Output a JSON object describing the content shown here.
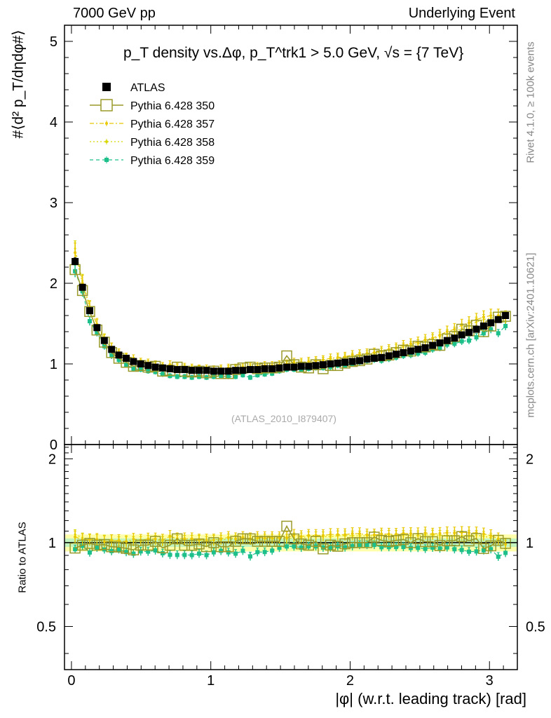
{
  "header": {
    "left": "7000 GeV pp",
    "right": "Underlying Event"
  },
  "side": {
    "rivet": "Rivet 4.1.0, ≥ 100k events",
    "mcplots": "mcplots.cern.ch [arXiv:2401.10621]"
  },
  "chart_data": {
    "type": "scatter",
    "title": "p_T density vs.Δφ, p_T^trk1 > 5.0 GeV, √s = {7 TeV}",
    "analysis_id": "(ATLAS_2010_I879407)",
    "xlabel": "|φ| (w.r.t. leading track) [rad]",
    "ylabel": "#⟨d² p_T/dηdφ#⟩",
    "ratio_ylabel": "Ratio to ATLAS",
    "xlim": [
      -0.05,
      3.2
    ],
    "ylim": [
      0,
      5.2
    ],
    "ratio_ylim": [
      0.35,
      2.25
    ],
    "x_ticks": [
      "0",
      "1",
      "2",
      "3"
    ],
    "y_ticks": [
      "0",
      "1",
      "2",
      "3",
      "4",
      "5"
    ],
    "ratio_ticks": [
      "0.5",
      "1",
      "2"
    ],
    "legend": [
      {
        "name": "ATLAS",
        "color": "#000000",
        "marker": "filled-square",
        "line": "none"
      },
      {
        "name": "Pythia 6.428 350",
        "color": "#9a9a2a",
        "marker": "open-square",
        "line": "solid"
      },
      {
        "name": "Pythia 6.428 357",
        "color": "#e8c800",
        "marker": "small-dot",
        "line": "dashdot"
      },
      {
        "name": "Pythia 6.428 358",
        "color": "#d8d800",
        "marker": "small-dot",
        "line": "dotted"
      },
      {
        "name": "Pythia 6.428 359",
        "color": "#1dc08a",
        "marker": "filled-square-small",
        "line": "dashed"
      }
    ],
    "x": [
      0.026,
      0.079,
      0.131,
      0.183,
      0.236,
      0.288,
      0.34,
      0.393,
      0.445,
      0.497,
      0.55,
      0.602,
      0.654,
      0.707,
      0.759,
      0.812,
      0.864,
      0.916,
      0.969,
      1.021,
      1.073,
      1.126,
      1.178,
      1.23,
      1.283,
      1.335,
      1.387,
      1.44,
      1.492,
      1.545,
      1.597,
      1.649,
      1.702,
      1.754,
      1.806,
      1.859,
      1.911,
      1.963,
      2.016,
      2.068,
      2.121,
      2.173,
      2.225,
      2.278,
      2.33,
      2.382,
      2.435,
      2.487,
      2.539,
      2.592,
      2.644,
      2.696,
      2.749,
      2.801,
      2.853,
      2.906,
      2.958,
      3.01,
      3.063,
      3.115
    ],
    "series": [
      {
        "name": "ATLAS",
        "values": [
          2.27,
          1.95,
          1.66,
          1.45,
          1.29,
          1.18,
          1.11,
          1.07,
          1.03,
          1.0,
          0.98,
          0.96,
          0.95,
          0.94,
          0.93,
          0.93,
          0.92,
          0.92,
          0.92,
          0.91,
          0.91,
          0.91,
          0.92,
          0.92,
          0.93,
          0.93,
          0.94,
          0.94,
          0.95,
          0.96,
          0.96,
          0.97,
          0.97,
          0.98,
          0.99,
          1.0,
          1.01,
          1.02,
          1.03,
          1.04,
          1.06,
          1.07,
          1.08,
          1.1,
          1.12,
          1.14,
          1.16,
          1.18,
          1.2,
          1.23,
          1.26,
          1.29,
          1.32,
          1.36,
          1.39,
          1.43,
          1.47,
          1.51,
          1.55,
          1.6
        ]
      },
      {
        "name": "Pythia 6.428 350",
        "values": [
          2.17,
          1.91,
          1.65,
          1.42,
          1.27,
          1.14,
          1.07,
          1.02,
          0.97,
          0.98,
          0.96,
          0.97,
          0.91,
          0.92,
          0.96,
          0.91,
          0.9,
          0.91,
          0.89,
          0.91,
          0.88,
          0.88,
          0.93,
          0.95,
          0.96,
          0.94,
          0.95,
          0.95,
          0.96,
          1.1,
          0.99,
          0.96,
          0.95,
          0.99,
          0.94,
          0.98,
          0.98,
          1.01,
          1.03,
          1.04,
          1.06,
          1.12,
          1.1,
          1.11,
          1.14,
          1.17,
          1.16,
          1.22,
          1.21,
          1.24,
          1.23,
          1.31,
          1.34,
          1.43,
          1.41,
          1.48,
          1.4,
          1.47,
          1.58,
          1.59
        ]
      },
      {
        "name": "Pythia 6.428 357",
        "values": [
          2.38,
          2.0,
          1.7,
          1.49,
          1.3,
          1.2,
          1.13,
          1.08,
          1.06,
          1.02,
          1.01,
          0.99,
          0.97,
          0.99,
          0.96,
          0.96,
          0.95,
          0.94,
          0.94,
          0.93,
          0.94,
          0.95,
          0.95,
          0.96,
          0.96,
          0.97,
          0.98,
          0.98,
          0.99,
          1.0,
          1.02,
          1.02,
          1.03,
          1.04,
          1.05,
          1.07,
          1.08,
          1.09,
          1.11,
          1.12,
          1.13,
          1.14,
          1.16,
          1.18,
          1.2,
          1.23,
          1.25,
          1.27,
          1.3,
          1.32,
          1.36,
          1.4,
          1.43,
          1.48,
          1.51,
          1.55,
          1.58,
          1.6,
          1.6,
          1.58
        ]
      },
      {
        "name": "Pythia 6.428 358",
        "values": [
          2.43,
          2.03,
          1.71,
          1.49,
          1.32,
          1.21,
          1.12,
          1.08,
          1.04,
          1.01,
          1.0,
          0.98,
          0.96,
          0.96,
          0.95,
          0.95,
          0.94,
          0.94,
          0.93,
          0.93,
          0.93,
          0.94,
          0.94,
          0.95,
          0.95,
          0.96,
          0.97,
          0.97,
          0.98,
          0.99,
          1.0,
          1.01,
          1.02,
          1.03,
          1.04,
          1.05,
          1.07,
          1.08,
          1.09,
          1.1,
          1.12,
          1.13,
          1.15,
          1.17,
          1.19,
          1.21,
          1.23,
          1.25,
          1.28,
          1.31,
          1.34,
          1.37,
          1.4,
          1.44,
          1.48,
          1.52,
          1.55,
          1.57,
          1.58,
          1.57
        ]
      },
      {
        "name": "Pythia 6.428 359",
        "values": [
          2.15,
          1.9,
          1.53,
          1.39,
          1.22,
          1.1,
          1.05,
          0.99,
          0.94,
          0.93,
          0.91,
          0.9,
          0.87,
          0.85,
          0.84,
          0.84,
          0.83,
          0.84,
          0.83,
          0.84,
          0.85,
          0.84,
          0.84,
          0.86,
          0.83,
          0.86,
          0.87,
          0.88,
          0.91,
          0.93,
          0.93,
          0.93,
          0.94,
          0.95,
          0.95,
          0.96,
          0.98,
          0.98,
          1.0,
          1.02,
          1.04,
          1.05,
          1.04,
          1.06,
          1.08,
          1.1,
          1.11,
          1.13,
          1.14,
          1.18,
          1.2,
          1.24,
          1.25,
          1.28,
          1.29,
          1.33,
          1.38,
          1.43,
          1.38,
          1.47
        ]
      }
    ]
  }
}
